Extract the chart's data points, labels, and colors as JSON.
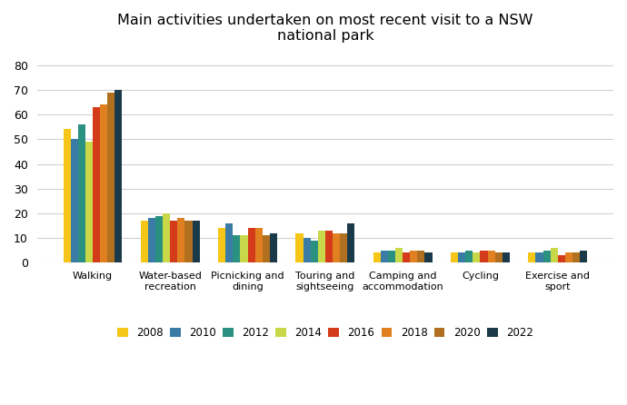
{
  "title": "Main activities undertaken on most recent visit to a NSW\nnational park",
  "categories": [
    "Walking",
    "Water-based\nrecreation",
    "Picnicking and\ndining",
    "Touring and\nsightseeing",
    "Camping and\naccommodation",
    "Cycling",
    "Exercise and\nsport"
  ],
  "years": [
    "2008",
    "2010",
    "2012",
    "2014",
    "2016",
    "2018",
    "2020",
    "2022"
  ],
  "colors": [
    "#F5C518",
    "#3A7CA5",
    "#2A9080",
    "#C8D848",
    "#D43B1A",
    "#E08020",
    "#B07020",
    "#1A3A4A"
  ],
  "data": {
    "Walking": [
      54,
      50,
      56,
      49,
      63,
      64,
      69,
      70
    ],
    "Water-based\nrecreation": [
      17,
      18,
      19,
      20,
      17,
      18,
      17,
      17
    ],
    "Picnicking and\ndining": [
      14,
      16,
      11,
      11,
      14,
      14,
      11,
      12
    ],
    "Touring and\nsightseeing": [
      12,
      10,
      9,
      13,
      13,
      12,
      12,
      16
    ],
    "Camping and\naccommodation": [
      4,
      5,
      5,
      6,
      4,
      5,
      5,
      4
    ],
    "Cycling": [
      4,
      4,
      5,
      4,
      5,
      5,
      4,
      4
    ],
    "Exercise and\nsport": [
      4,
      4,
      5,
      6,
      3,
      4,
      4,
      5
    ]
  },
  "ylim": [
    0,
    85
  ],
  "yticks": [
    0,
    10,
    20,
    30,
    40,
    50,
    60,
    70,
    80
  ],
  "background_color": "#ffffff",
  "grid_color": "#d0d0d0",
  "bar_width": 0.095,
  "figsize": [
    6.9,
    4.46
  ],
  "dpi": 100
}
